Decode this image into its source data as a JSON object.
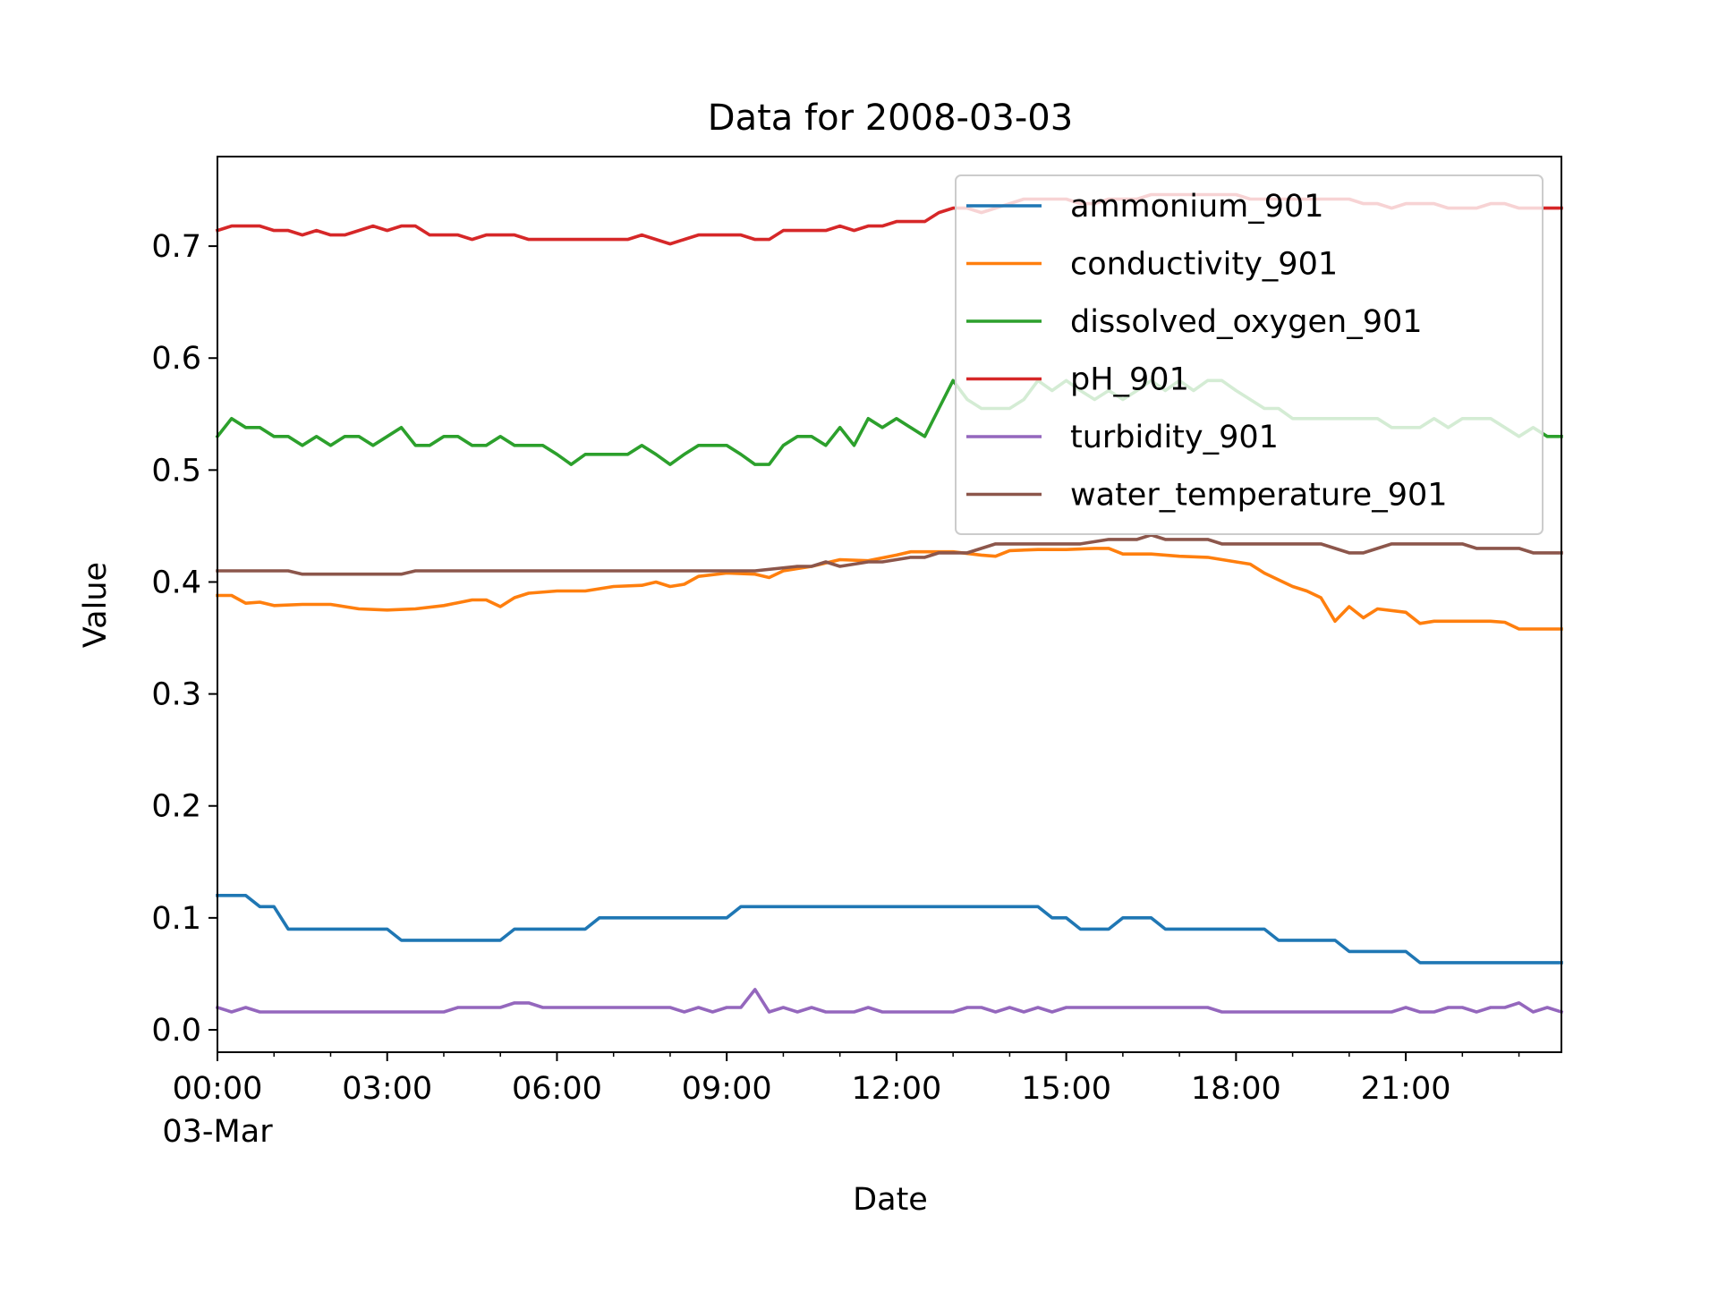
{
  "chart_data": {
    "type": "line",
    "title": "Data for 2008-03-03",
    "xlabel": "Date",
    "ylabel": "Value",
    "x_ticks": [
      {
        "time": "00:00",
        "label": "00:00",
        "sublabel": "03-Mar"
      },
      {
        "time": "03:00",
        "label": "03:00"
      },
      {
        "time": "06:00",
        "label": "06:00"
      },
      {
        "time": "09:00",
        "label": "09:00"
      },
      {
        "time": "12:00",
        "label": "12:00"
      },
      {
        "time": "15:00",
        "label": "15:00"
      },
      {
        "time": "18:00",
        "label": "18:00"
      },
      {
        "time": "21:00",
        "label": "21:00"
      }
    ],
    "xlim": [
      "2008-03-03 00:00",
      "2008-03-03 23:45"
    ],
    "y_ticks": [
      "0.0",
      "0.1",
      "0.2",
      "0.3",
      "0.4",
      "0.5",
      "0.6",
      "0.7"
    ],
    "ylim": [
      -0.02,
      0.78
    ],
    "grid": false,
    "legend_position": "upper right",
    "series": [
      {
        "name": "ammonium_901",
        "color": "#1f77b4",
        "x": [
          "00:00",
          "00:30",
          "00:45",
          "01:00",
          "01:15",
          "03:00",
          "03:15",
          "05:00",
          "05:15",
          "06:30",
          "06:45",
          "09:00",
          "09:15",
          "14:30",
          "14:45",
          "15:00",
          "15:15",
          "15:45",
          "16:00",
          "16:30",
          "16:45",
          "18:30",
          "18:45",
          "19:45",
          "20:00",
          "21:00",
          "21:15",
          "23:45"
        ],
        "y": [
          0.12,
          0.12,
          0.11,
          0.11,
          0.09,
          0.09,
          0.08,
          0.08,
          0.09,
          0.09,
          0.1,
          0.1,
          0.11,
          0.11,
          0.1,
          0.1,
          0.09,
          0.09,
          0.1,
          0.1,
          0.09,
          0.09,
          0.08,
          0.08,
          0.07,
          0.07,
          0.06,
          0.06
        ]
      },
      {
        "name": "conductivity_901",
        "color": "#ff7f0e",
        "x": [
          "00:00",
          "00:15",
          "00:30",
          "00:45",
          "01:00",
          "01:30",
          "02:00",
          "02:30",
          "03:00",
          "03:30",
          "04:00",
          "04:30",
          "04:45",
          "05:00",
          "05:15",
          "05:30",
          "06:00",
          "06:30",
          "07:00",
          "07:30",
          "07:45",
          "08:00",
          "08:15",
          "08:30",
          "09:00",
          "09:30",
          "09:45",
          "10:00",
          "10:30",
          "11:00",
          "11:30",
          "12:00",
          "12:15",
          "12:30",
          "13:00",
          "13:30",
          "13:45",
          "14:00",
          "14:30",
          "15:00",
          "15:30",
          "15:45",
          "16:00",
          "16:30",
          "17:00",
          "17:30",
          "18:00",
          "18:15",
          "18:30",
          "19:00",
          "19:15",
          "19:30",
          "19:45",
          "20:00",
          "20:15",
          "20:30",
          "21:00",
          "21:15",
          "21:30",
          "22:00",
          "22:30",
          "22:45",
          "23:00",
          "23:45"
        ],
        "y": [
          0.388,
          0.388,
          0.381,
          0.382,
          0.379,
          0.38,
          0.38,
          0.376,
          0.375,
          0.376,
          0.379,
          0.384,
          0.384,
          0.378,
          0.386,
          0.39,
          0.392,
          0.392,
          0.396,
          0.397,
          0.4,
          0.396,
          0.398,
          0.405,
          0.408,
          0.407,
          0.404,
          0.41,
          0.414,
          0.42,
          0.419,
          0.424,
          0.427,
          0.427,
          0.427,
          0.424,
          0.423,
          0.428,
          0.429,
          0.429,
          0.43,
          0.43,
          0.425,
          0.425,
          0.423,
          0.422,
          0.418,
          0.416,
          0.408,
          0.396,
          0.392,
          0.386,
          0.365,
          0.378,
          0.368,
          0.376,
          0.373,
          0.363,
          0.365,
          0.365,
          0.365,
          0.364,
          0.358,
          0.358
        ]
      },
      {
        "name": "dissolved_oxygen_901",
        "color": "#2ca02c",
        "x": [
          "00:00",
          "00:15",
          "00:30",
          "00:45",
          "01:00",
          "01:15",
          "01:30",
          "01:45",
          "02:00",
          "02:15",
          "02:30",
          "02:45",
          "03:00",
          "03:15",
          "03:30",
          "03:45",
          "04:00",
          "04:15",
          "04:30",
          "04:45",
          "05:00",
          "05:15",
          "05:30",
          "05:45",
          "06:00",
          "06:15",
          "06:30",
          "06:45",
          "07:00",
          "07:15",
          "07:30",
          "07:45",
          "08:00",
          "08:15",
          "08:30",
          "08:45",
          "09:00",
          "09:15",
          "09:30",
          "09:45",
          "10:00",
          "10:15",
          "10:30",
          "10:45",
          "11:00",
          "11:15",
          "11:30",
          "11:45",
          "12:00",
          "12:15",
          "12:30",
          "12:45",
          "13:00",
          "13:15",
          "13:30",
          "13:45",
          "14:00",
          "14:15",
          "14:30",
          "14:45",
          "15:00",
          "15:15",
          "15:30",
          "15:45",
          "16:00",
          "16:15",
          "16:30",
          "16:45",
          "17:00",
          "17:15",
          "17:30",
          "17:45",
          "18:00",
          "18:15",
          "18:30",
          "18:45",
          "19:00",
          "19:15",
          "19:30",
          "19:45",
          "20:00",
          "20:15",
          "20:30",
          "20:45",
          "21:00",
          "21:15",
          "21:30",
          "21:45",
          "22:00",
          "22:15",
          "22:30",
          "22:45",
          "23:00",
          "23:15",
          "23:30",
          "23:45"
        ],
        "y": [
          0.53,
          0.546,
          0.538,
          0.538,
          0.53,
          0.53,
          0.522,
          0.53,
          0.522,
          0.53,
          0.53,
          0.522,
          0.53,
          0.538,
          0.522,
          0.522,
          0.53,
          0.53,
          0.522,
          0.522,
          0.53,
          0.522,
          0.522,
          0.522,
          0.514,
          0.505,
          0.514,
          0.514,
          0.514,
          0.514,
          0.522,
          0.514,
          0.505,
          0.514,
          0.522,
          0.522,
          0.522,
          0.514,
          0.505,
          0.505,
          0.522,
          0.53,
          0.53,
          0.522,
          0.538,
          0.522,
          0.546,
          0.538,
          0.546,
          0.538,
          0.53,
          0.555,
          0.58,
          0.563,
          0.555,
          0.555,
          0.555,
          0.563,
          0.58,
          0.571,
          0.58,
          0.571,
          0.563,
          0.571,
          0.563,
          0.571,
          0.58,
          0.571,
          0.58,
          0.571,
          0.58,
          0.58,
          0.571,
          0.563,
          0.555,
          0.555,
          0.546,
          0.546,
          0.546,
          0.546,
          0.546,
          0.546,
          0.546,
          0.538,
          0.538,
          0.538,
          0.546,
          0.538,
          0.546,
          0.546,
          0.546,
          0.538,
          0.53,
          0.538,
          0.53,
          0.53
        ]
      },
      {
        "name": "pH_901",
        "color": "#d62728",
        "x": [
          "00:00",
          "00:15",
          "00:30",
          "00:45",
          "01:00",
          "01:15",
          "01:30",
          "01:45",
          "02:00",
          "02:15",
          "02:30",
          "02:45",
          "03:00",
          "03:15",
          "03:30",
          "03:45",
          "04:00",
          "04:15",
          "04:30",
          "04:45",
          "05:00",
          "05:15",
          "05:30",
          "05:45",
          "06:00",
          "06:15",
          "06:30",
          "06:45",
          "07:00",
          "07:15",
          "07:30",
          "07:45",
          "08:00",
          "08:15",
          "08:30",
          "08:45",
          "09:00",
          "09:15",
          "09:30",
          "09:45",
          "10:00",
          "10:15",
          "10:30",
          "10:45",
          "11:00",
          "11:15",
          "11:30",
          "11:45",
          "12:00",
          "12:15",
          "12:30",
          "12:45",
          "13:00",
          "13:15",
          "13:30",
          "13:45",
          "14:00",
          "14:15",
          "14:30",
          "14:45",
          "15:00",
          "15:15",
          "15:30",
          "15:45",
          "16:00",
          "16:15",
          "16:30",
          "16:45",
          "17:00",
          "17:15",
          "17:30",
          "17:45",
          "18:00",
          "18:15",
          "18:30",
          "18:45",
          "19:00",
          "19:15",
          "19:30",
          "19:45",
          "20:00",
          "20:15",
          "20:30",
          "20:45",
          "21:00",
          "21:15",
          "21:30",
          "21:45",
          "22:00",
          "22:15",
          "22:30",
          "22:45",
          "23:00",
          "23:15",
          "23:30",
          "23:45"
        ],
        "y": [
          0.714,
          0.718,
          0.718,
          0.718,
          0.714,
          0.714,
          0.71,
          0.714,
          0.71,
          0.71,
          0.714,
          0.718,
          0.714,
          0.718,
          0.718,
          0.71,
          0.71,
          0.71,
          0.706,
          0.71,
          0.71,
          0.71,
          0.706,
          0.706,
          0.706,
          0.706,
          0.706,
          0.706,
          0.706,
          0.706,
          0.71,
          0.706,
          0.702,
          0.706,
          0.71,
          0.71,
          0.71,
          0.71,
          0.706,
          0.706,
          0.714,
          0.714,
          0.714,
          0.714,
          0.718,
          0.714,
          0.718,
          0.718,
          0.722,
          0.722,
          0.722,
          0.73,
          0.734,
          0.734,
          0.73,
          0.734,
          0.738,
          0.742,
          0.742,
          0.742,
          0.742,
          0.738,
          0.738,
          0.742,
          0.742,
          0.742,
          0.746,
          0.746,
          0.746,
          0.746,
          0.746,
          0.746,
          0.746,
          0.742,
          0.742,
          0.742,
          0.742,
          0.742,
          0.742,
          0.742,
          0.742,
          0.738,
          0.738,
          0.734,
          0.738,
          0.738,
          0.738,
          0.734,
          0.734,
          0.734,
          0.738,
          0.738,
          0.734,
          0.734,
          0.734,
          0.734
        ]
      },
      {
        "name": "turbidity_901",
        "color": "#9467bd",
        "x": [
          "00:00",
          "00:15",
          "00:30",
          "00:45",
          "01:00",
          "01:15",
          "01:30",
          "01:45",
          "02:00",
          "02:15",
          "02:30",
          "02:45",
          "03:00",
          "03:15",
          "03:30",
          "03:45",
          "04:00",
          "04:15",
          "04:30",
          "04:45",
          "05:00",
          "05:15",
          "05:30",
          "05:45",
          "06:00",
          "06:15",
          "06:30",
          "06:45",
          "07:00",
          "07:15",
          "07:30",
          "07:45",
          "08:00",
          "08:15",
          "08:30",
          "08:45",
          "09:00",
          "09:15",
          "09:30",
          "09:45",
          "10:00",
          "10:15",
          "10:30",
          "10:45",
          "11:00",
          "11:15",
          "11:30",
          "11:45",
          "12:00",
          "12:15",
          "12:30",
          "12:45",
          "13:00",
          "13:15",
          "13:30",
          "13:45",
          "14:00",
          "14:15",
          "14:30",
          "14:45",
          "15:00",
          "15:15",
          "15:30",
          "15:45",
          "16:00",
          "16:15",
          "16:30",
          "16:45",
          "17:00",
          "17:15",
          "17:30",
          "17:45",
          "18:00",
          "18:15",
          "18:30",
          "18:45",
          "19:00",
          "19:15",
          "19:30",
          "19:45",
          "20:00",
          "20:15",
          "20:30",
          "20:45",
          "21:00",
          "21:15",
          "21:30",
          "21:45",
          "22:00",
          "22:15",
          "22:30",
          "22:45",
          "23:00",
          "23:15",
          "23:30",
          "23:45"
        ],
        "y": [
          0.02,
          0.016,
          0.02,
          0.016,
          0.016,
          0.016,
          0.016,
          0.016,
          0.016,
          0.016,
          0.016,
          0.016,
          0.016,
          0.016,
          0.016,
          0.016,
          0.016,
          0.02,
          0.02,
          0.02,
          0.02,
          0.024,
          0.024,
          0.02,
          0.02,
          0.02,
          0.02,
          0.02,
          0.02,
          0.02,
          0.02,
          0.02,
          0.02,
          0.016,
          0.02,
          0.016,
          0.02,
          0.02,
          0.036,
          0.016,
          0.02,
          0.016,
          0.02,
          0.016,
          0.016,
          0.016,
          0.02,
          0.016,
          0.016,
          0.016,
          0.016,
          0.016,
          0.016,
          0.02,
          0.02,
          0.016,
          0.02,
          0.016,
          0.02,
          0.016,
          0.02,
          0.02,
          0.02,
          0.02,
          0.02,
          0.02,
          0.02,
          0.02,
          0.02,
          0.02,
          0.02,
          0.016,
          0.016,
          0.016,
          0.016,
          0.016,
          0.016,
          0.016,
          0.016,
          0.016,
          0.016,
          0.016,
          0.016,
          0.016,
          0.02,
          0.016,
          0.016,
          0.02,
          0.02,
          0.016,
          0.02,
          0.02,
          0.024,
          0.016,
          0.02,
          0.016
        ]
      },
      {
        "name": "water_temperature_901",
        "color": "#8c564b",
        "x": [
          "00:00",
          "01:15",
          "01:30",
          "03:15",
          "03:30",
          "07:45",
          "08:00",
          "09:15",
          "09:30",
          "10:15",
          "10:30",
          "10:45",
          "11:00",
          "11:30",
          "11:45",
          "12:15",
          "12:30",
          "12:45",
          "13:15",
          "13:30",
          "13:45",
          "15:00",
          "15:15",
          "15:45",
          "16:00",
          "16:15",
          "16:30",
          "16:45",
          "17:30",
          "17:45",
          "19:30",
          "19:45",
          "20:00",
          "20:15",
          "20:30",
          "20:45",
          "22:00",
          "22:15",
          "23:00",
          "23:15",
          "23:45"
        ],
        "y": [
          0.41,
          0.41,
          0.407,
          0.407,
          0.41,
          0.41,
          0.41,
          0.41,
          0.41,
          0.414,
          0.414,
          0.418,
          0.414,
          0.418,
          0.418,
          0.422,
          0.422,
          0.426,
          0.426,
          0.43,
          0.434,
          0.434,
          0.434,
          0.438,
          0.438,
          0.438,
          0.442,
          0.438,
          0.438,
          0.434,
          0.434,
          0.43,
          0.426,
          0.426,
          0.43,
          0.434,
          0.434,
          0.43,
          0.43,
          0.426,
          0.426
        ]
      }
    ]
  }
}
